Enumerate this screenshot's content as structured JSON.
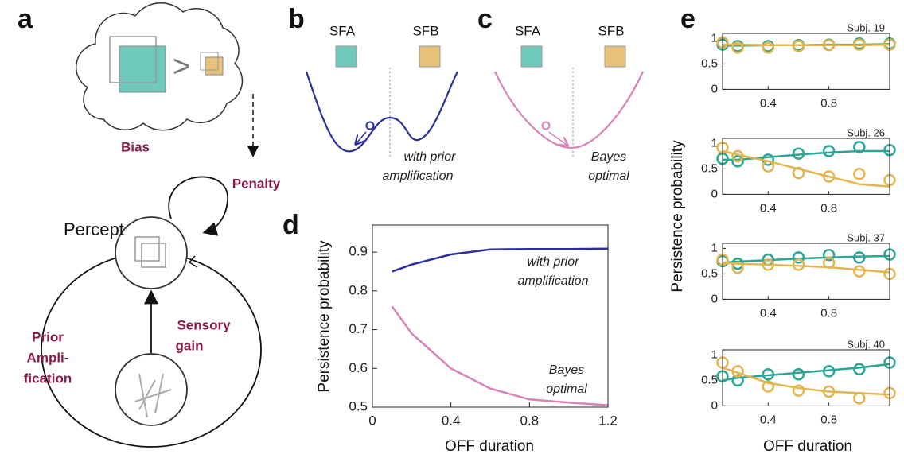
{
  "panels": {
    "a": {
      "label": "a",
      "bias": "Bias",
      "compare": ">",
      "penalty": "Penalty",
      "percept": "Percept",
      "prior": [
        "Prior",
        "Ampli-",
        "fication"
      ],
      "sensory": [
        "Sensory",
        "gain"
      ]
    },
    "b": {
      "label": "b",
      "left": "SFA",
      "right": "SFB",
      "note": [
        "with prior",
        "amplification"
      ]
    },
    "c": {
      "label": "c",
      "left": "SFA",
      "right": "SFB",
      "note": [
        "Bayes",
        "optimal"
      ]
    },
    "d": {
      "label": "d"
    },
    "e": {
      "label": "e",
      "ylabel": "Persistence probability",
      "xlabel": "OFF duration"
    }
  },
  "chart_data": [
    {
      "type": "line",
      "xlabel": "OFF duration",
      "ylabel": "Persistence probability",
      "x": [
        0.1,
        0.2,
        0.4,
        0.6,
        0.8,
        1.0,
        1.2
      ],
      "series": [
        {
          "color": "#2b2f9e",
          "values": [
            0.85,
            0.868,
            0.894,
            0.907,
            0.908,
            0.908,
            0.909
          ]
        },
        {
          "color": "#d882b8",
          "values": [
            0.76,
            0.69,
            0.6,
            0.548,
            0.52,
            0.512,
            0.505
          ]
        }
      ],
      "annotations": [
        [
          "with prior",
          "amplification"
        ],
        [
          "Bayes",
          "optimal"
        ]
      ],
      "xlim": [
        0,
        1.2
      ],
      "xticks": [
        0,
        0.4,
        0.8,
        1.2
      ],
      "ylim": [
        0.5,
        0.97
      ],
      "yticks": [
        0.5,
        0.6,
        0.7,
        0.8,
        0.9
      ]
    },
    {
      "type": "scatter",
      "title": "Subj. 19",
      "x": [
        0.1,
        0.2,
        0.4,
        0.6,
        0.8,
        1.0,
        1.2
      ],
      "series": [
        {
          "color": "#2ba595",
          "values": [
            0.88,
            0.85,
            0.85,
            0.87,
            0.88,
            0.9,
            0.9
          ],
          "fit": [
            0.86,
            0.86,
            0.87,
            0.87,
            0.88,
            0.88,
            0.89
          ]
        },
        {
          "color": "#e3b54e",
          "values": [
            0.92,
            0.82,
            0.82,
            0.85,
            0.87,
            0.88,
            0.88
          ],
          "fit": [
            0.88,
            0.88,
            0.87,
            0.87,
            0.87,
            0.87,
            0.88
          ]
        }
      ],
      "xlim": [
        0.1,
        1.2
      ],
      "xticks": [
        0.4,
        0.8
      ],
      "ylim": [
        0,
        1.1
      ],
      "yticks": [
        0,
        0.5,
        1
      ]
    },
    {
      "type": "scatter",
      "title": "Subj. 26",
      "x": [
        0.1,
        0.2,
        0.4,
        0.6,
        0.8,
        1.0,
        1.2
      ],
      "series": [
        {
          "color": "#2ba595",
          "values": [
            0.7,
            0.65,
            0.68,
            0.8,
            0.85,
            0.93,
            0.87
          ],
          "fit": [
            0.68,
            0.68,
            0.73,
            0.78,
            0.82,
            0.85,
            0.85
          ]
        },
        {
          "color": "#e3b54e",
          "values": [
            0.92,
            0.75,
            0.55,
            0.42,
            0.35,
            0.4,
            0.28
          ],
          "fit": [
            0.85,
            0.78,
            0.65,
            0.5,
            0.35,
            0.2,
            0.15
          ]
        }
      ],
      "xlim": [
        0.1,
        1.2
      ],
      "xticks": [
        0.4,
        0.8
      ],
      "ylim": [
        0,
        1.1
      ],
      "yticks": [
        0,
        0.5,
        1
      ]
    },
    {
      "type": "scatter",
      "title": "Subj. 37",
      "x": [
        0.1,
        0.2,
        0.4,
        0.6,
        0.8,
        1.0,
        1.2
      ],
      "series": [
        {
          "color": "#2ba595",
          "values": [
            0.75,
            0.7,
            0.78,
            0.82,
            0.87,
            0.82,
            0.88
          ],
          "fit": [
            0.72,
            0.74,
            0.77,
            0.8,
            0.82,
            0.84,
            0.85
          ]
        },
        {
          "color": "#e3b54e",
          "values": [
            0.78,
            0.62,
            0.68,
            0.68,
            0.72,
            0.55,
            0.5
          ],
          "fit": [
            0.72,
            0.7,
            0.68,
            0.66,
            0.63,
            0.58,
            0.53
          ]
        }
      ],
      "xlim": [
        0.1,
        1.2
      ],
      "xticks": [
        0.4,
        0.8
      ],
      "ylim": [
        0,
        1.1
      ],
      "yticks": [
        0,
        0.5,
        1
      ]
    },
    {
      "type": "scatter",
      "title": "Subj. 40",
      "x": [
        0.1,
        0.2,
        0.4,
        0.6,
        0.8,
        1.0,
        1.2
      ],
      "series": [
        {
          "color": "#2ba595",
          "values": [
            0.58,
            0.5,
            0.62,
            0.62,
            0.68,
            0.72,
            0.85
          ],
          "fit": [
            0.5,
            0.55,
            0.6,
            0.65,
            0.7,
            0.75,
            0.82
          ]
        },
        {
          "color": "#e3b54e",
          "values": [
            0.85,
            0.68,
            0.38,
            0.3,
            0.28,
            0.15,
            0.25
          ],
          "fit": [
            0.75,
            0.65,
            0.45,
            0.35,
            0.28,
            0.25,
            0.22
          ]
        }
      ],
      "xlim": [
        0.1,
        1.2
      ],
      "xticks": [
        0.4,
        0.8
      ],
      "ylim": [
        0,
        1.1
      ],
      "yticks": [
        0,
        0.5,
        1
      ]
    }
  ]
}
